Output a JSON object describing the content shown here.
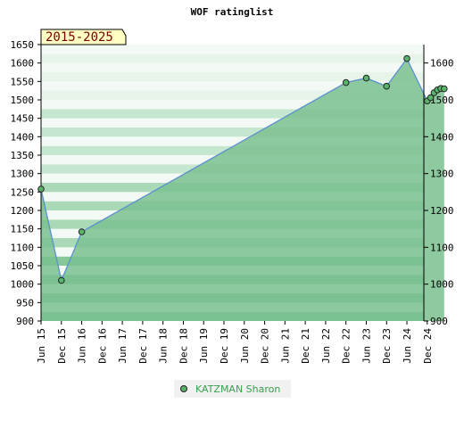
{
  "chart_data": {
    "type": "area",
    "title": "WOF ratinglist",
    "range_label": "2015-2025",
    "xlabel": "",
    "ylabel": "",
    "ylim": [
      900,
      1650
    ],
    "y_ticks_left": [
      900,
      950,
      1000,
      1050,
      1100,
      1150,
      1200,
      1250,
      1300,
      1350,
      1400,
      1450,
      1500,
      1550,
      1600,
      1650
    ],
    "y_ticks_right": [
      900,
      1000,
      1100,
      1200,
      1300,
      1400,
      1500,
      1600
    ],
    "x_tick_labels": [
      "Jun 15",
      "Dec 15",
      "Jun 16",
      "Dec 16",
      "Jun 17",
      "Dec 17",
      "Jun 18",
      "Dec 18",
      "Jun 19",
      "Dec 19",
      "Jun 20",
      "Dec 20",
      "Jun 21",
      "Dec 21",
      "Jun 22",
      "Dec 22",
      "Jun 23",
      "Dec 23",
      "Jun 24",
      "Dec 24"
    ],
    "grid": true,
    "legend_position": "bottom-center",
    "series": [
      {
        "name": "KATZMAN Sharon",
        "points": [
          {
            "x": "2015-06",
            "y": 1258
          },
          {
            "x": "2015-12",
            "y": 1010
          },
          {
            "x": "2016-06",
            "y": 1142
          },
          {
            "x": "2022-12",
            "y": 1547
          },
          {
            "x": "2023-06",
            "y": 1559
          },
          {
            "x": "2023-12",
            "y": 1537
          },
          {
            "x": "2024-06",
            "y": 1612
          },
          {
            "x": "2024-12",
            "y": 1497
          },
          {
            "x": "2025-01",
            "y": 1506
          },
          {
            "x": "2025-02",
            "y": 1519
          },
          {
            "x": "2025-03",
            "y": 1527
          },
          {
            "x": "2025-04",
            "y": 1531
          },
          {
            "x": "2025-05",
            "y": 1530
          }
        ]
      }
    ],
    "colors": {
      "line": "#5b8fd0",
      "area": "#7ac08f",
      "marker": "#5ab36a",
      "band_light": "#eef7f0",
      "band_dark": "#bfe2c8",
      "range_box": "#ffffc4"
    }
  }
}
